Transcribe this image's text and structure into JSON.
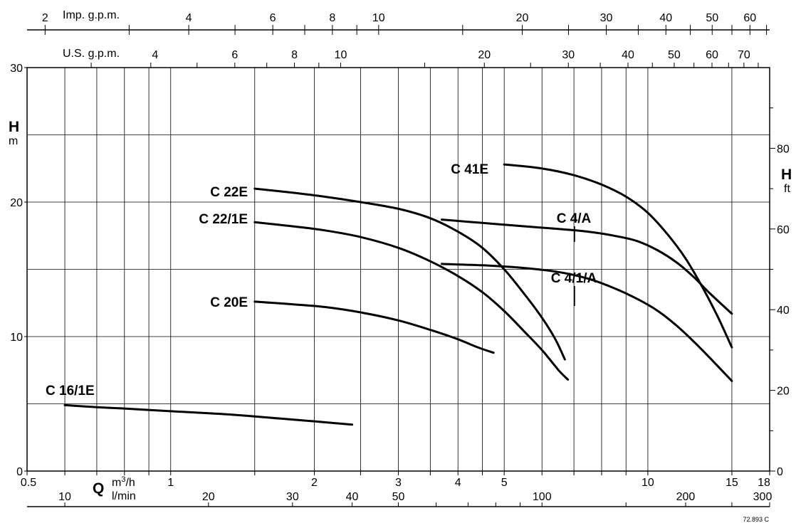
{
  "chart_data": {
    "type": "line",
    "x_scale": "log",
    "x_unit": "m3/h",
    "xlim": [
      0.5,
      18
    ],
    "ylim_left": [
      0,
      30
    ],
    "ylim_right": [
      0,
      100
    ],
    "left_axis": {
      "letter": "H",
      "unit": "m",
      "ticks": [
        0,
        10,
        20,
        30
      ]
    },
    "right_axis": {
      "letter": "H",
      "unit": "ft",
      "ticks": [
        0,
        20,
        40,
        60,
        80
      ]
    },
    "bottom_axis": {
      "letter": "Q",
      "unit_top": "m3/h",
      "unit_bottom": "l/min",
      "m3h_ticks": [
        "0.5",
        "1",
        "2",
        "3",
        "4",
        "5",
        "10",
        "15",
        "18"
      ],
      "lmin_ticks": [
        "10",
        "20",
        "30",
        "40",
        "50",
        "100",
        "200",
        "300"
      ]
    },
    "imp_gpm_axis": {
      "label": "Imp. g.p.m.",
      "ticks": [
        "2",
        "4",
        "6",
        "8",
        "10",
        "20",
        "30",
        "40",
        "50",
        "60"
      ]
    },
    "us_gpm_axis": {
      "label": "U.S. g.p.m.",
      "ticks": [
        "4",
        "6",
        "8",
        "10",
        "20",
        "30",
        "40",
        "50",
        "60",
        "70"
      ]
    },
    "grid": true,
    "series": [
      {
        "name": "C 16/1E",
        "x": [
          0.6,
          0.7,
          0.8,
          1.0,
          1.2,
          1.4,
          1.7,
          2.0,
          2.4
        ],
        "y": [
          4.9,
          4.75,
          4.65,
          4.45,
          4.3,
          4.15,
          3.9,
          3.7,
          3.45
        ]
      },
      {
        "name": "C 22E",
        "x": [
          1.5,
          1.8,
          2.1,
          2.5,
          3.0,
          3.5,
          4.0,
          4.5,
          5.0,
          5.5,
          6.0,
          6.4,
          6.7
        ],
        "y": [
          21.0,
          20.7,
          20.4,
          20.0,
          19.5,
          18.8,
          17.8,
          16.6,
          15.0,
          13.2,
          11.4,
          9.8,
          8.3
        ]
      },
      {
        "name": "C 22/1E",
        "x": [
          1.5,
          1.8,
          2.1,
          2.5,
          3.0,
          3.5,
          4.0,
          4.5,
          5.0,
          5.5,
          6.0,
          6.5,
          6.8
        ],
        "y": [
          18.5,
          18.2,
          17.9,
          17.4,
          16.6,
          15.6,
          14.5,
          13.3,
          11.9,
          10.4,
          9.0,
          7.5,
          6.8
        ]
      },
      {
        "name": "C 20E",
        "x": [
          1.5,
          1.8,
          2.1,
          2.5,
          3.0,
          3.5,
          4.0,
          4.4,
          4.75
        ],
        "y": [
          12.6,
          12.4,
          12.2,
          11.8,
          11.2,
          10.5,
          9.8,
          9.2,
          8.8
        ]
      },
      {
        "name": "C 41E",
        "x": [
          5.0,
          6.0,
          7.0,
          8.0,
          9.0,
          10.0,
          11.0,
          12.0,
          13.0,
          14.0,
          15.0
        ],
        "y": [
          22.8,
          22.5,
          22.0,
          21.3,
          20.4,
          19.2,
          17.6,
          15.8,
          13.7,
          11.5,
          9.2
        ]
      },
      {
        "name": "C 4/A",
        "x": [
          3.7,
          4.5,
          5.5,
          6.5,
          7.5,
          8.5,
          9.5,
          10.5,
          11.5,
          12.5,
          13.5,
          15.0
        ],
        "y": [
          18.7,
          18.45,
          18.2,
          18.0,
          17.8,
          17.5,
          17.1,
          16.4,
          15.5,
          14.4,
          13.2,
          11.7
        ]
      },
      {
        "name": "C 4/1/A",
        "x": [
          3.7,
          4.5,
          5.5,
          6.5,
          7.5,
          8.5,
          9.5,
          10.5,
          11.5,
          12.5,
          13.5,
          15.0
        ],
        "y": [
          15.4,
          15.3,
          15.1,
          14.8,
          14.3,
          13.6,
          12.8,
          11.9,
          10.8,
          9.6,
          8.4,
          6.7
        ]
      }
    ]
  },
  "doc_code": "72.893 C"
}
